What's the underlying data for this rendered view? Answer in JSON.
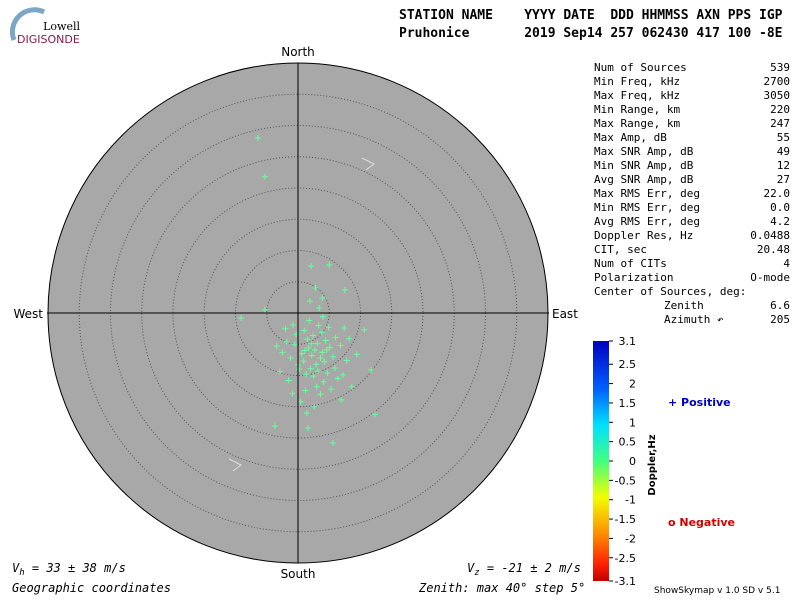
{
  "logo": {
    "top": "Lowell",
    "bottom": "DIGISONDE"
  },
  "header": {
    "line1": "STATION NAME    YYYY DATE  DDD HHMMSS AXN PPS IGP",
    "line2": "Pruhonice       2019 Sep14 257 062430 417 100 -8E"
  },
  "chart_data": {
    "type": "skymap",
    "directions": {
      "north": "North",
      "south": "South",
      "east": "East",
      "west": "West"
    },
    "rlim": [
      0,
      40
    ],
    "rticks": [
      5,
      10,
      15,
      20,
      25,
      30,
      35,
      40
    ],
    "series": [
      {
        "color": "#66ff99",
        "x": [
          -6.4,
          -5.3,
          2.1,
          5.0,
          -3.7,
          1.6,
          5.6,
          12.3,
          -9.1,
          -5.3,
          7.5,
          10.6,
          11.7,
          2.7,
          1.5,
          3.8,
          0.6,
          4.2,
          2.0,
          -0.5,
          5.1,
          3.3,
          1.0,
          6.0,
          -1.2,
          2.5,
          4.7,
          0.2,
          -1.8,
          3.0,
          5.6,
          1.8,
          4.0,
          -0.8,
          6.8,
          7.4,
          -2.5,
          -2.9,
          1.2,
          3.6,
          2.2,
          3.1,
          1.7,
          4.4,
          0.9,
          2.9,
          5.9,
          -0.3,
          2.4,
          3.9,
          1.3,
          6.4,
          7.8,
          -1.5,
          4.9,
          3.4,
          1.9,
          5.3,
          8.6,
          0.4,
          -0.9,
          2.6,
          6.9,
          3.6,
          2.1,
          4.6,
          1.1,
          3.2,
          -2.0,
          8.2,
          7.2,
          0.0,
          4.1,
          9.4,
          -3.4,
          2.8,
          3.9,
          1.4
        ],
        "y": [
          28.0,
          21.8,
          7.5,
          7.7,
          -18.1,
          -18.4,
          -20.8,
          -16.2,
          -0.8,
          0.5,
          3.7,
          -2.7,
          -9.1,
          -5.9,
          -4.2,
          -3.1,
          -6.5,
          -7.8,
          -8.9,
          -5.0,
          -5.5,
          -2.0,
          -2.8,
          -3.9,
          -7.2,
          -10.1,
          -9.6,
          -9.0,
          -4.6,
          -11.8,
          -7.0,
          -1.2,
          -0.6,
          -1.9,
          -5.2,
          -2.4,
          -6.3,
          -9.4,
          -12.4,
          -13.0,
          -6.8,
          -4.9,
          -5.6,
          -4.4,
          -7.7,
          -8.2,
          -8.8,
          -3.4,
          -3.6,
          -6.3,
          -9.8,
          -10.5,
          -7.6,
          -10.8,
          -2.3,
          0.8,
          1.9,
          -12.2,
          -11.8,
          -14.2,
          -12.9,
          -15.0,
          -13.9,
          -7.2,
          -4.9,
          -5.9,
          -6.0,
          -9.3,
          -2.5,
          -4.1,
          -9.9,
          -8.3,
          -11.0,
          -6.6,
          -5.3,
          4.0,
          2.4,
          -16.0
        ]
      }
    ],
    "colorbar": {
      "label": "Doppler,Hz",
      "lim": [
        -3.1,
        3.1
      ],
      "ticks": [
        3.1,
        2.5,
        2,
        1.5,
        1,
        0.5,
        0,
        -0.5,
        -1,
        -1.5,
        -2,
        -2.5,
        -3.1
      ]
    },
    "legend": {
      "positive": "+ Positive",
      "negative": "o Negative"
    }
  },
  "stats": {
    "rows": [
      [
        "Num of Sources",
        "539"
      ],
      [
        "Min Freq, kHz",
        "2700"
      ],
      [
        "Max Freq, kHz",
        "3050"
      ],
      [
        "Min Range, km",
        "220"
      ],
      [
        "Max Range, km",
        "247"
      ],
      [
        "Max Amp, dB",
        "55"
      ],
      [
        "Max SNR Amp, dB",
        "49"
      ],
      [
        "Min SNR Amp, dB",
        "12"
      ],
      [
        "Avg SNR Amp, dB",
        "27"
      ],
      [
        "Max RMS Err, deg",
        "22.0"
      ],
      [
        "Min RMS Err, deg",
        "0.0"
      ],
      [
        "Avg RMS Err, deg",
        "4.2"
      ],
      [
        "Doppler Res, Hz",
        "0.0488"
      ],
      [
        "CIT, sec",
        "20.48"
      ],
      [
        "Num of CITs",
        "4"
      ],
      [
        "Polarization",
        "O-mode"
      ]
    ],
    "center_title": "Center of Sources, deg:",
    "center": [
      [
        "Zenith",
        "6.6"
      ],
      [
        "Azimuth ↶",
        "205"
      ]
    ]
  },
  "footer": {
    "vh": {
      "symbol": "V",
      "sub": "h",
      "text": " = 33 ± 38 m/s"
    },
    "vz": {
      "symbol": "V",
      "sub": "z",
      "text": " = -21 ± 2 m/s"
    },
    "coords": "Geographic coordinates",
    "zenith": "Zenith: max 40°  step 5°",
    "version": "ShowSkymap v 1.0  SD v 5.1"
  }
}
